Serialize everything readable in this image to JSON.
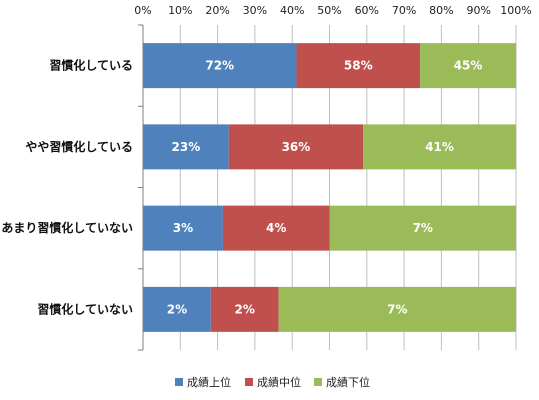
{
  "chart_data": {
    "type": "bar",
    "orientation": "horizontal",
    "stacking": "percent",
    "categories": [
      "習慣化している",
      "やや習慣化している",
      "あまり習慣化していない",
      "習慣化していない"
    ],
    "x_ticks": [
      "0%",
      "10%",
      "20%",
      "30%",
      "40%",
      "50%",
      "60%",
      "70%",
      "80%",
      "90%",
      "100%"
    ],
    "xlim": [
      0,
      100
    ],
    "x_axis_position": "top",
    "grid": true,
    "legend_position": "bottom",
    "series": [
      {
        "name": "成績上位",
        "color": "#4f81bd",
        "values": [
          72,
          23,
          3,
          2
        ],
        "labels": [
          "72%",
          "23%",
          "3%",
          "2%"
        ]
      },
      {
        "name": "成績中位",
        "color": "#c0504d",
        "values": [
          58,
          36,
          4,
          2
        ],
        "labels": [
          "58%",
          "36%",
          "4%",
          "2%"
        ]
      },
      {
        "name": "成績下位",
        "color": "#9bbb59",
        "values": [
          45,
          41,
          7,
          7
        ],
        "labels": [
          "45%",
          "41%",
          "7%",
          "7%"
        ]
      }
    ]
  }
}
